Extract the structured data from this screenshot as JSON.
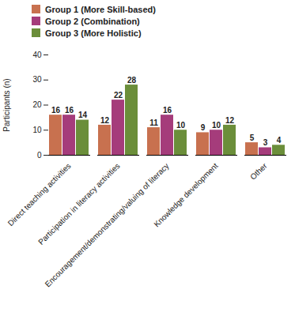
{
  "chart_data": {
    "type": "bar",
    "categories": [
      "Direct teaching activities",
      "Participation in literacy activities",
      "Encouragement/demonstrating/valuing of literacy",
      "Knowledge development",
      "Other"
    ],
    "series": [
      {
        "name": "Group 1 (More Skill-based)",
        "color": "#c8714f",
        "values": [
          16,
          12,
          11,
          9,
          5
        ]
      },
      {
        "name": "Group 2 (Combination)",
        "color": "#a53c7b",
        "values": [
          16,
          22,
          16,
          10,
          3
        ]
      },
      {
        "name": "Group 3 (More Holistic)",
        "color": "#6b8e3a",
        "values": [
          14,
          28,
          10,
          12,
          4
        ]
      }
    ],
    "y_label": "Participants (n)",
    "ylim": [
      0,
      40
    ],
    "yticks": [
      0,
      10,
      20,
      30,
      40
    ],
    "grid": false,
    "legend": "top-left",
    "data_labels": true
  }
}
